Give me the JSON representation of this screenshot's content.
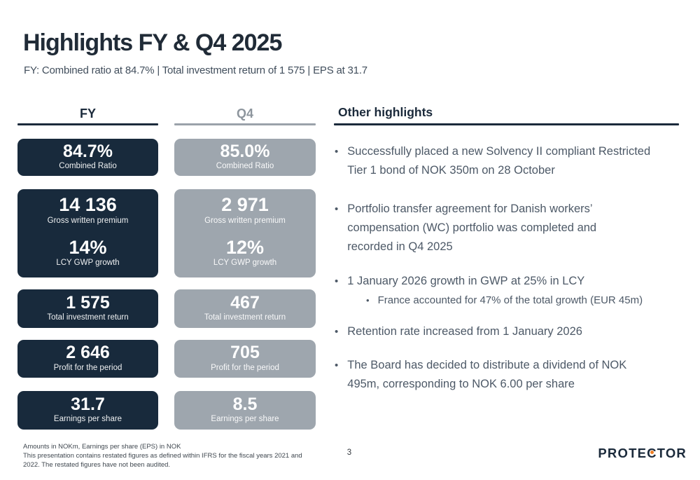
{
  "brand": {
    "navy": "#1b2a3b",
    "card_navy": "#182a3c",
    "card_gray": "#9ea6ae",
    "orange_dot": "#ef7d22",
    "body_text": "#4d5967"
  },
  "header": {
    "title": "Highlights FY & Q4 2025",
    "subtitle": "FY: Combined ratio at 84.7% | Total investment return of 1 575 | EPS at 31.7"
  },
  "fy": {
    "header": "FY",
    "combined_ratio": {
      "value": "84.7%",
      "label": "Combined Ratio"
    },
    "gwp": {
      "value": "14 136",
      "label": "Gross written premium"
    },
    "gwp_growth": {
      "value": "14%",
      "label": "LCY GWP growth"
    },
    "investment_return": {
      "value": "1 575",
      "label": "Total investment return"
    },
    "profit": {
      "value": "2 646",
      "label": "Profit for the period"
    },
    "eps": {
      "value": "31.7",
      "label": "Earnings per share"
    }
  },
  "q4": {
    "header": "Q4",
    "combined_ratio": {
      "value": "85.0%",
      "label": "Combined Ratio"
    },
    "gwp": {
      "value": "2 971",
      "label": "Gross written premium"
    },
    "gwp_growth": {
      "value": "12%",
      "label": "LCY GWP growth"
    },
    "investment_return": {
      "value": "467",
      "label": "Total investment return"
    },
    "profit": {
      "value": "705",
      "label": "Profit for the period"
    },
    "eps": {
      "value": "8.5",
      "label": "Earnings per share"
    }
  },
  "highlights": {
    "title": "Other highlights",
    "bullet_glyph": "•",
    "bullets": [
      {
        "text": "Successfully placed a new Solvency II compliant Restricted Tier 1 bond of NOK 350m on 28 October"
      },
      {
        "text": "Portfolio transfer agreement for Danish workers’ compensation (WC) portfolio was completed and recorded in Q4 2025"
      },
      {
        "text": "1 January 2026 growth in GWP at 25% in LCY",
        "sub": "France accounted for 47% of the total growth (EUR 45m)"
      },
      {
        "text": "Retention rate increased from 1 January 2026"
      },
      {
        "text": "The Board has decided to distribute a dividend of NOK 495m, corresponding to NOK 6.00 per share"
      }
    ]
  },
  "footer": {
    "note_line1": "Amounts in NOKm, Earnings per share (EPS) in NOK",
    "note_line2": "This presentation contains restated figures as defined within IFRS for the fiscal years 2021 and 2022. The restated figures have not been audited.",
    "page_number": "3",
    "logo": {
      "pre": "PROTE",
      "c": "C",
      "post": "TOR"
    }
  }
}
